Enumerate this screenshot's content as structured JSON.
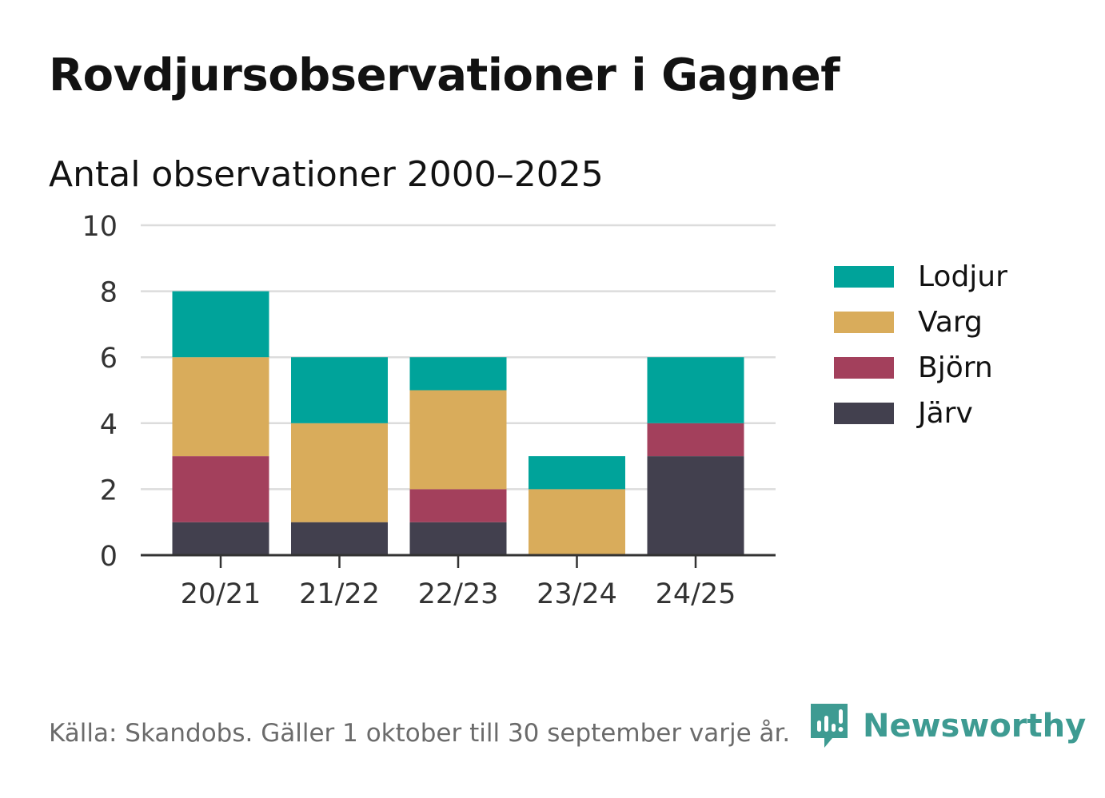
{
  "title": "Rovdjursobservationer i Gagnef",
  "chart_data": {
    "type": "bar",
    "stacked": true,
    "title": "Rovdjursobservationer i Gagnef",
    "subtitle": "Antal observationer 2000–2025",
    "xlabel": "",
    "ylabel": "",
    "ylim": [
      0,
      10
    ],
    "yticks": [
      "0",
      "2",
      "4",
      "6",
      "8",
      "10"
    ],
    "grid": true,
    "legend_position": "right",
    "categories": [
      "20/21",
      "21/22",
      "22/23",
      "23/24",
      "24/25"
    ],
    "series": [
      {
        "name": "Järv",
        "color": "#42404e",
        "values": [
          1,
          1,
          1,
          0,
          3
        ]
      },
      {
        "name": "Björn",
        "color": "#a3405c",
        "values": [
          2,
          0,
          1,
          0,
          1
        ]
      },
      {
        "name": "Varg",
        "color": "#d9ac5b",
        "values": [
          3,
          3,
          3,
          2,
          0
        ]
      },
      {
        "name": "Lodjur",
        "color": "#00a39a",
        "values": [
          2,
          2,
          1,
          1,
          2
        ]
      }
    ]
  },
  "legend": {
    "items": [
      {
        "label": "Lodjur",
        "color": "#00a39a"
      },
      {
        "label": "Varg",
        "color": "#d9ac5b"
      },
      {
        "label": "Björn",
        "color": "#a3405c"
      },
      {
        "label": "Järv",
        "color": "#42404e"
      }
    ]
  },
  "footer": {
    "source": "Källa: Skandobs. Gäller 1 oktober till 30 september varje år."
  },
  "brand": {
    "name": "Newsworthy",
    "icon": "newsworthy-logo-icon",
    "color": "#3e9b92"
  }
}
